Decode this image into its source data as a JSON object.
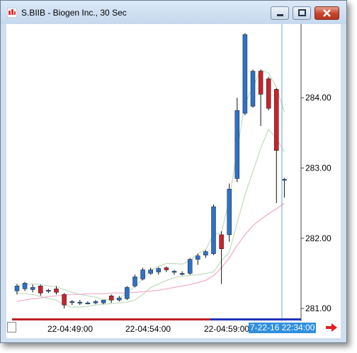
{
  "window": {
    "title": "S.BIIB - Biogen Inc., 30 Sec",
    "buttons": [
      "minimize",
      "maximize",
      "close"
    ]
  },
  "chart_data": {
    "type": "candlestick",
    "symbol": "S.BIIB",
    "interval": "30 Sec",
    "ylim": [
      280.88,
      285.05
    ],
    "yticks": [
      "284.00",
      "283.00",
      "282.00",
      "281.00"
    ],
    "xticks": [
      "22-04:49:00",
      "22-04:54:00",
      "22-04:59:00"
    ],
    "cursor_time": "7-22-16 22:34:00",
    "candles": [
      {
        "o": 281.25,
        "h": 281.35,
        "l": 281.2,
        "c": 281.32
      },
      {
        "o": 281.28,
        "h": 281.38,
        "l": 281.25,
        "c": 281.36
      },
      {
        "o": 281.27,
        "h": 281.34,
        "l": 281.23,
        "c": 281.3
      },
      {
        "o": 281.32,
        "h": 281.34,
        "l": 281.18,
        "c": 281.22
      },
      {
        "o": 281.25,
        "h": 281.28,
        "l": 281.22,
        "c": 281.26
      },
      {
        "o": 281.28,
        "h": 281.32,
        "l": 281.2,
        "c": 281.23
      },
      {
        "o": 281.2,
        "h": 281.22,
        "l": 281.0,
        "c": 281.05
      },
      {
        "o": 281.1,
        "h": 281.12,
        "l": 281.05,
        "c": 281.1
      },
      {
        "o": 281.08,
        "h": 281.12,
        "l": 281.05,
        "c": 281.09
      },
      {
        "o": 281.08,
        "h": 281.1,
        "l": 281.06,
        "c": 281.08
      },
      {
        "o": 281.08,
        "h": 281.12,
        "l": 281.06,
        "c": 281.1
      },
      {
        "o": 281.08,
        "h": 281.12,
        "l": 281.06,
        "c": 281.12
      },
      {
        "o": 281.18,
        "h": 281.2,
        "l": 281.08,
        "c": 281.12
      },
      {
        "o": 281.12,
        "h": 281.18,
        "l": 281.1,
        "c": 281.15
      },
      {
        "o": 281.14,
        "h": 281.32,
        "l": 281.12,
        "c": 281.3
      },
      {
        "o": 281.32,
        "h": 281.48,
        "l": 281.3,
        "c": 281.45
      },
      {
        "o": 281.42,
        "h": 281.58,
        "l": 281.4,
        "c": 281.55
      },
      {
        "o": 281.5,
        "h": 281.58,
        "l": 281.48,
        "c": 281.55
      },
      {
        "o": 281.52,
        "h": 281.59,
        "l": 281.48,
        "c": 281.57
      },
      {
        "o": 281.58,
        "h": 281.6,
        "l": 281.52,
        "c": 281.55
      },
      {
        "o": 281.52,
        "h": 281.55,
        "l": 281.48,
        "c": 281.53
      },
      {
        "o": 281.5,
        "h": 281.53,
        "l": 281.47,
        "c": 281.5
      },
      {
        "o": 281.5,
        "h": 281.72,
        "l": 281.48,
        "c": 281.7
      },
      {
        "o": 281.7,
        "h": 281.78,
        "l": 281.62,
        "c": 281.75
      },
      {
        "o": 281.76,
        "h": 281.83,
        "l": 281.72,
        "c": 281.81
      },
      {
        "o": 281.78,
        "h": 282.48,
        "l": 281.76,
        "c": 282.45
      },
      {
        "o": 282.05,
        "h": 282.1,
        "l": 281.35,
        "c": 281.85
      },
      {
        "o": 282.05,
        "h": 282.78,
        "l": 281.95,
        "c": 282.7
      },
      {
        "o": 282.85,
        "h": 284.0,
        "l": 282.8,
        "c": 283.82
      },
      {
        "o": 283.78,
        "h": 284.92,
        "l": 283.75,
        "c": 284.9
      },
      {
        "o": 283.88,
        "h": 284.4,
        "l": 283.86,
        "c": 284.38
      },
      {
        "o": 284.38,
        "h": 284.4,
        "l": 283.6,
        "c": 284.05
      },
      {
        "o": 284.27,
        "h": 284.3,
        "l": 283.82,
        "c": 283.85
      },
      {
        "o": 284.12,
        "h": 284.14,
        "l": 282.5,
        "c": 283.25
      },
      {
        "o": 282.83,
        "h": 282.86,
        "l": 282.58,
        "c": 282.84
      }
    ],
    "bands": {
      "upper": [
        281.33,
        281.34,
        281.35,
        281.34,
        281.32,
        281.31,
        281.27,
        281.23,
        281.2,
        281.18,
        281.16,
        281.13,
        281.12,
        281.15,
        281.22,
        281.32,
        281.42,
        281.54,
        281.6,
        281.64,
        281.64,
        281.63,
        281.68,
        281.78,
        281.84,
        282.05,
        282.08,
        282.55,
        283.25,
        283.92,
        284.15,
        284.4,
        284.35,
        284.15,
        283.8
      ],
      "lower": [
        281.22,
        281.21,
        281.2,
        281.17,
        281.14,
        281.12,
        281.05,
        281.02,
        281.02,
        281.03,
        281.05,
        281.06,
        281.07,
        281.08,
        281.09,
        281.12,
        281.2,
        281.3,
        281.35,
        281.4,
        281.44,
        281.46,
        281.47,
        281.48,
        281.5,
        281.52,
        281.68,
        281.8,
        282.22,
        282.62,
        282.95,
        283.28,
        283.55,
        283.42,
        283.23
      ],
      "ma": [
        281.1,
        281.12,
        281.14,
        281.15,
        281.17,
        281.18,
        281.19,
        281.2,
        281.2,
        281.21,
        281.21,
        281.21,
        281.22,
        281.22,
        281.22,
        281.23,
        281.24,
        281.25,
        281.26,
        281.28,
        281.3,
        281.32,
        281.34,
        281.37,
        281.4,
        281.47,
        281.58,
        281.72,
        281.9,
        282.05,
        282.18,
        282.27,
        282.35,
        282.42,
        282.5
      ]
    },
    "colors": {
      "up": "#2d72c9",
      "down": "#c8232c",
      "band": "#c0dcbc",
      "ma": "#f2a8c8",
      "cursor": "#6aa8c8"
    }
  }
}
